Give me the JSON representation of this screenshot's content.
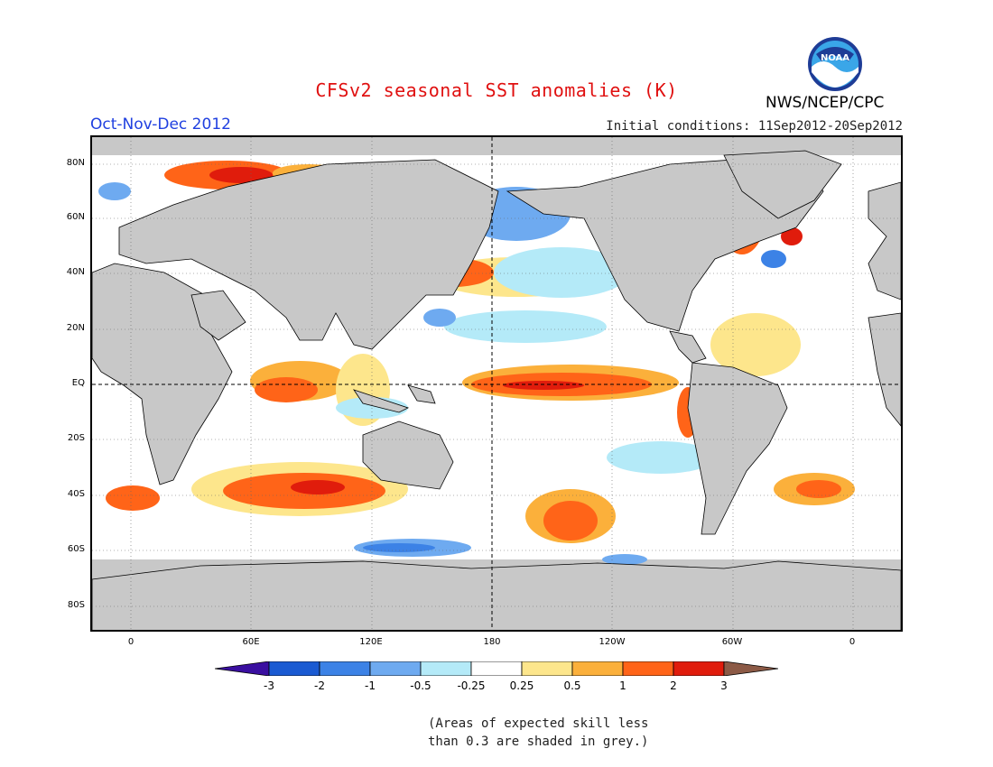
{
  "header": {
    "title": "CFSv2 seasonal SST anomalies (K)",
    "period": "Oct-Nov-Dec 2012",
    "initial_conditions": "Initial conditions: 11Sep2012-20Sep2012",
    "organization": "NWS/NCEP/CPC",
    "logo_text": "NOAA"
  },
  "map": {
    "lat_labels": [
      "80N",
      "60N",
      "40N",
      "20N",
      "EQ",
      "20S",
      "40S",
      "60S",
      "80S"
    ],
    "lon_labels": [
      "0",
      "60E",
      "120E",
      "180",
      "120W",
      "60W",
      "0"
    ],
    "land_color": "#c8c8c8",
    "low_skill_color": "#c8c8c8"
  },
  "colorbar": {
    "labels": [
      "-3",
      "-2",
      "-1",
      "-0.5",
      "-0.25",
      "0.25",
      "0.5",
      "1",
      "2",
      "3"
    ],
    "colors": [
      "#3a0fa0",
      "#1a5ad2",
      "#3c82e6",
      "#6eaaf0",
      "#b4eaf8",
      "#ffffff",
      "#fde68c",
      "#fbb03b",
      "#ff6418",
      "#e01c0c",
      "#a50f0f",
      "#8c5a46"
    ]
  },
  "footnote": {
    "line1": "(Areas of expected skill less",
    "line2": "than 0.3 are shaded in grey.)"
  }
}
